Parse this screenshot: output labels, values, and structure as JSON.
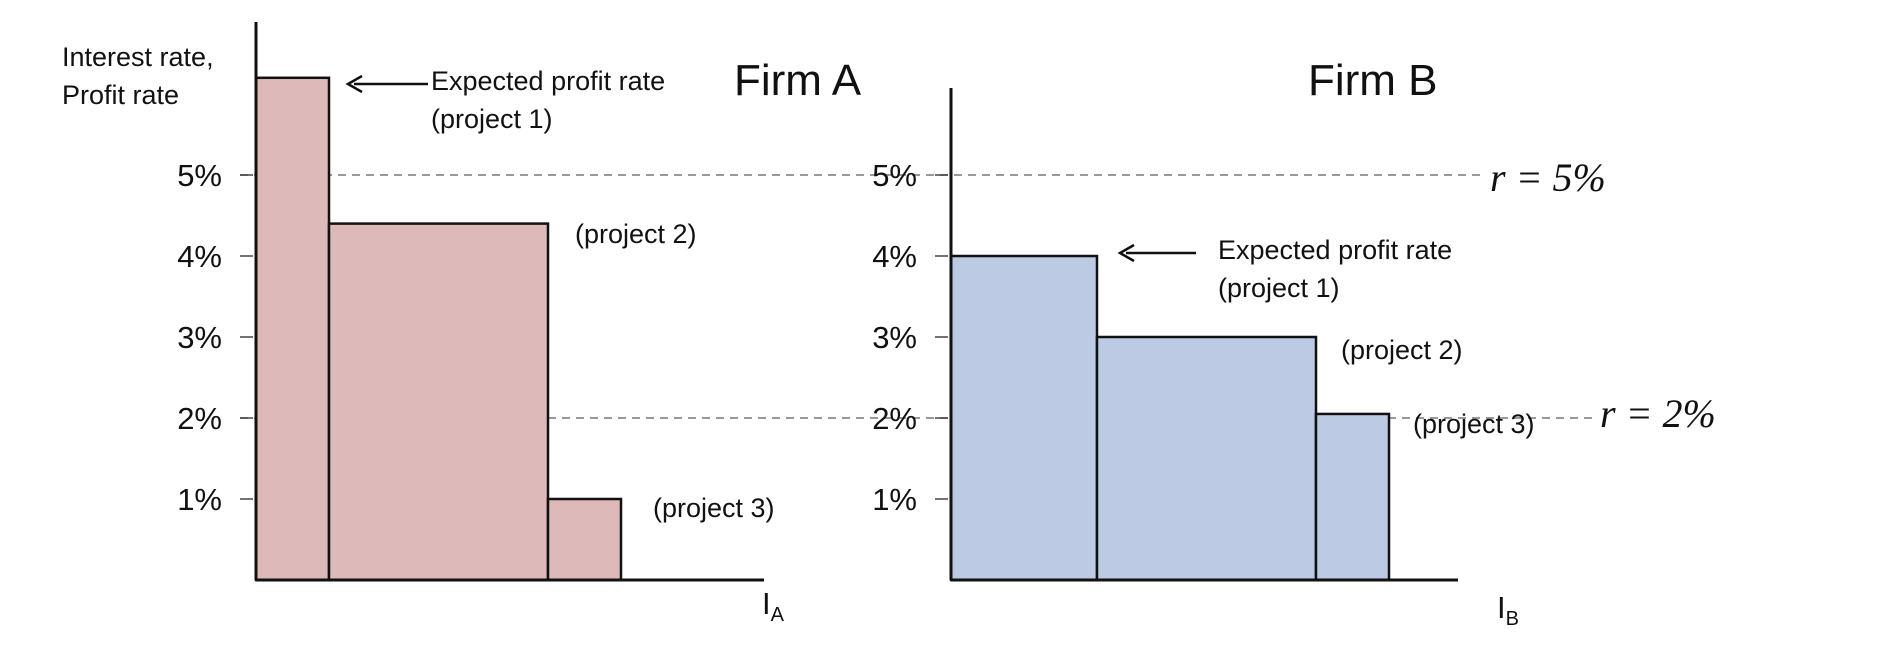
{
  "colors": {
    "firm_a_fill": "#deb9b9",
    "firm_b_fill": "#bccbe3",
    "outline": "#111111",
    "dashed_line": "#999999"
  },
  "rate_lines": [
    {
      "value": 5,
      "label": "r = 5%"
    },
    {
      "value": 2,
      "label": "r = 2%"
    }
  ],
  "chart_data": [
    {
      "type": "bar",
      "title": "Firm A",
      "ylabel_lines": [
        "Interest rate,",
        "Profit rate"
      ],
      "xlabel": {
        "main": "I",
        "sub": "A"
      },
      "ticks": [
        1,
        2,
        3,
        4,
        5
      ],
      "tick_labels": [
        "1%",
        "2%",
        "3%",
        "4%",
        "5%"
      ],
      "ylim": [
        0,
        6.2
      ],
      "categories": [
        "project 1",
        "project 2",
        "project 3"
      ],
      "widths": [
        1,
        3,
        1
      ],
      "values": [
        6.2,
        4.4,
        1.0
      ],
      "annotation": "Expected profit rate",
      "labels": [
        "(project 1)",
        "(project 2)",
        "(project 3)"
      ]
    },
    {
      "type": "bar",
      "title": "Firm B",
      "xlabel": {
        "main": "I",
        "sub": "B"
      },
      "ticks": [
        1,
        2,
        3,
        4,
        5
      ],
      "tick_labels": [
        "1%",
        "2%",
        "3%",
        "4%",
        "5%"
      ],
      "ylim": [
        0,
        6.2
      ],
      "categories": [
        "project 1",
        "project 2",
        "project 3"
      ],
      "widths": [
        2,
        3,
        1
      ],
      "values": [
        4.0,
        3.0,
        2.05
      ],
      "annotation": "Expected profit rate",
      "labels": [
        "(project 1)",
        "(project 2)",
        "(project 3)"
      ]
    }
  ]
}
